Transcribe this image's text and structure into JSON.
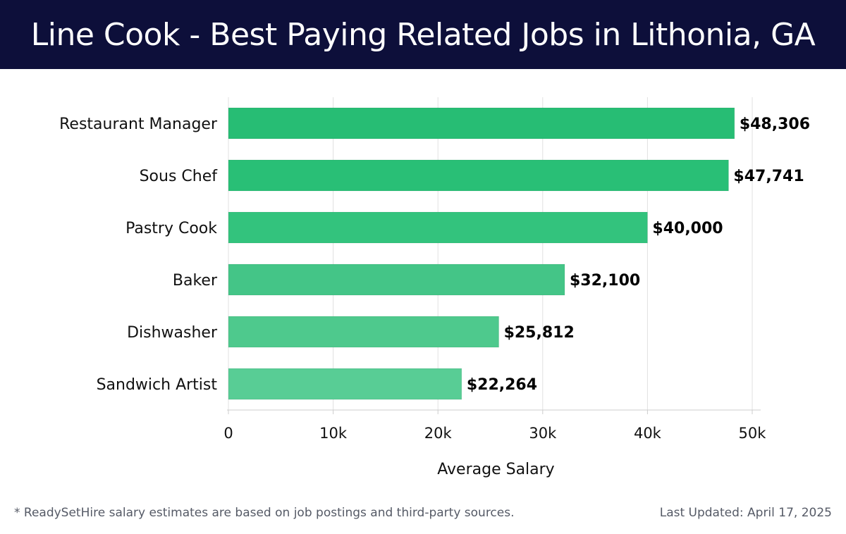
{
  "header": {
    "title": "Line Cook - Best Paying Related Jobs in Lithonia, GA"
  },
  "chart_data": {
    "type": "bar",
    "orientation": "horizontal",
    "title": "Line Cook - Best Paying Related Jobs in Lithonia, GA",
    "xlabel": "Average Salary",
    "ylabel": "",
    "categories": [
      "Restaurant Manager",
      "Sous Chef",
      "Pastry Cook",
      "Baker",
      "Dishwasher",
      "Sandwich Artist"
    ],
    "values": [
      48306,
      47741,
      40000,
      32100,
      25812,
      22264
    ],
    "value_labels": [
      "$48,306",
      "$47,741",
      "$40,000",
      "$32,100",
      "$25,812",
      "$22,264"
    ],
    "bar_colors": [
      "#27bd74",
      "#29bf76",
      "#33c37d",
      "#44c587",
      "#4ec98d",
      "#58cd95"
    ],
    "xlim": [
      0,
      50000
    ],
    "x_ticks": [
      0,
      10000,
      20000,
      30000,
      40000,
      50000
    ],
    "x_tick_labels": [
      "0",
      "10k",
      "20k",
      "30k",
      "40k",
      "50k"
    ],
    "grid": true,
    "legend": "none"
  },
  "footer": {
    "note": "* ReadySetHire salary estimates are based on job postings and third-party sources.",
    "updated": "Last Updated: April 17, 2025"
  },
  "colors": {
    "header_bg": "#0d0f3a",
    "header_text": "#ffffff",
    "grid": "#e0e0e0",
    "footer_text": "#555a66"
  }
}
